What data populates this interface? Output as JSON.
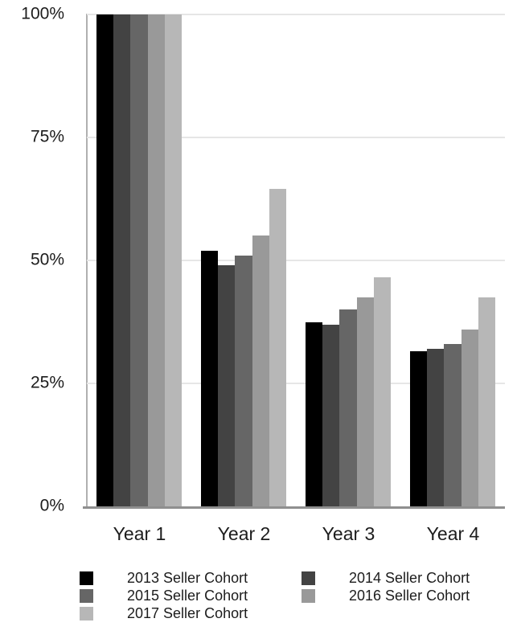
{
  "chart_data": {
    "type": "bar",
    "title": "",
    "categories": [
      "Year 1",
      "Year 2",
      "Year 3",
      "Year 4"
    ],
    "series": [
      {
        "name": "2013 Seller Cohort",
        "color": "#000000",
        "values": [
          100,
          52,
          37.5,
          31.5
        ]
      },
      {
        "name": "2014 Seller Cohort",
        "color": "#434343",
        "values": [
          100,
          49,
          37,
          32
        ]
      },
      {
        "name": "2015 Seller Cohort",
        "color": "#666666",
        "values": [
          100,
          51,
          40,
          33
        ]
      },
      {
        "name": "2016 Seller Cohort",
        "color": "#999999",
        "values": [
          100,
          55,
          42.5,
          36
        ]
      },
      {
        "name": "2017 Seller Cohort",
        "color": "#b7b7b7",
        "values": [
          100,
          64.5,
          46.5,
          42.5
        ]
      }
    ],
    "yticks": [
      {
        "value": 0,
        "label": "0%"
      },
      {
        "value": 25,
        "label": "25%"
      },
      {
        "value": 50,
        "label": "50%"
      },
      {
        "value": 75,
        "label": "75%"
      },
      {
        "value": 100,
        "label": "100%"
      }
    ],
    "ylim": [
      0,
      100
    ],
    "xlabel": "",
    "ylabel": "",
    "grid": true,
    "legend_position": "bottom",
    "colors": {
      "background": "#ffffff",
      "gridline": "#e6e6e6",
      "axis_line": "#8f8f8f",
      "text": "#1c1c1c"
    }
  }
}
